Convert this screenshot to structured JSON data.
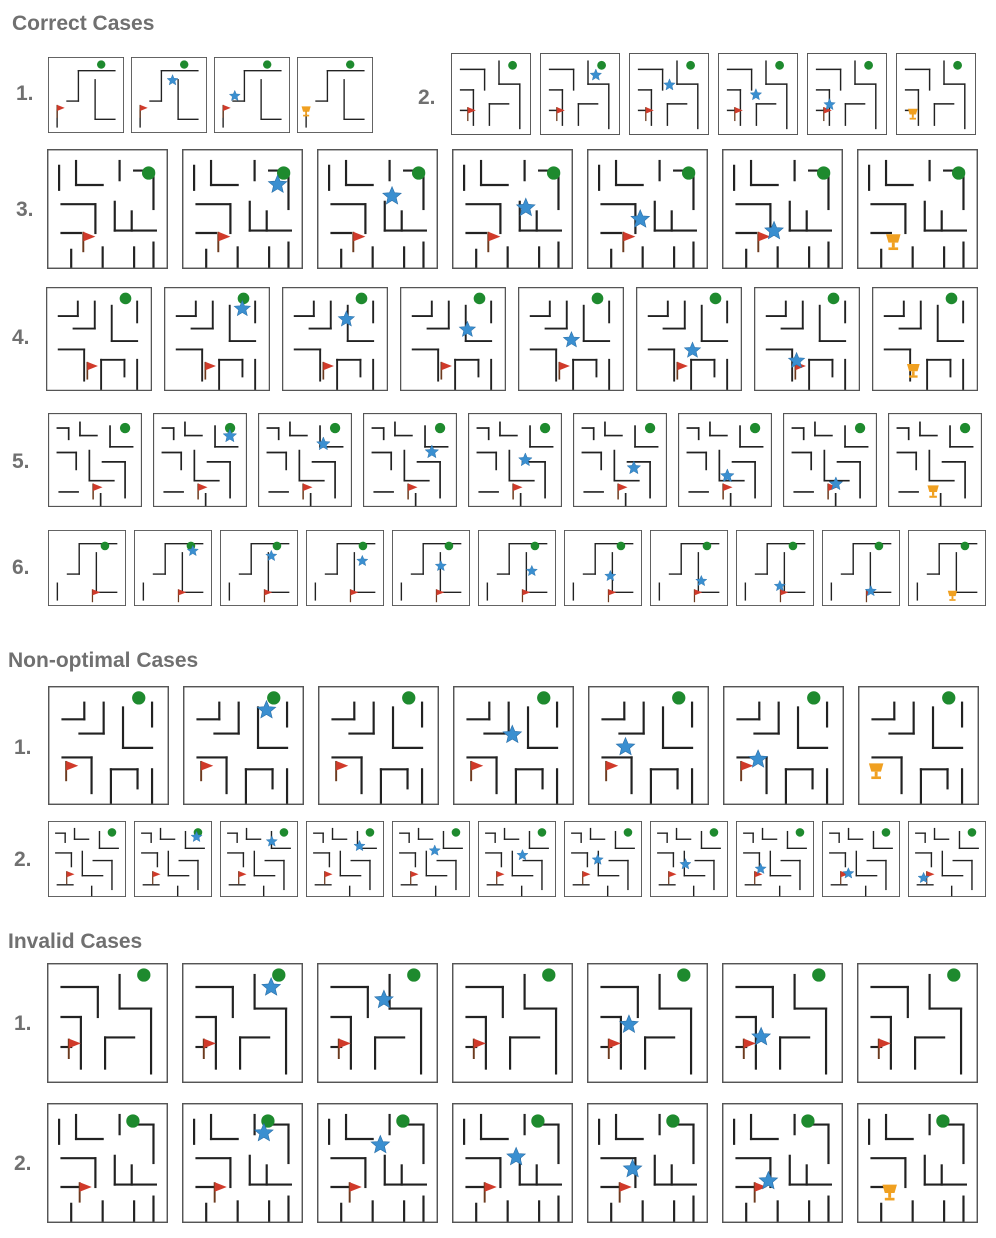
{
  "sections": [
    {
      "title": "Correct Cases",
      "rows": [
        {
          "label": "1.",
          "frames": [
            "g,f",
            "g,s,f",
            "g,s,f",
            "g,t"
          ]
        },
        {
          "label": "2.",
          "frames": [
            "g,f",
            "g,f,s",
            "g,f,s",
            "g,f,s",
            "g,f,s",
            "g,t"
          ]
        },
        {
          "label": "3.",
          "frames": [
            "g,f",
            "g,s,f",
            "g,s,f",
            "g,s,f",
            "g,s,f",
            "g,f,s",
            "g,t"
          ]
        },
        {
          "label": "4.",
          "frames": [
            "g,f",
            "g,s,f",
            "g,s,f",
            "g,s,f",
            "g,s,f",
            "g,s,f",
            "g,s,f",
            "g,t"
          ]
        },
        {
          "label": "5.",
          "frames": [
            "g,f",
            "g,s,f",
            "g,s,f",
            "g,s,f",
            "g,s,f",
            "g,s,f",
            "g,s,f",
            "g,s,f",
            "g,t"
          ]
        },
        {
          "label": "6.",
          "frames": [
            "g,f",
            "g,s,f",
            "g,s,f",
            "g,s,f",
            "g,s,f",
            "g,s,f",
            "g,s,f",
            "g,s,f",
            "g,s,f",
            "g,s,f",
            "g,t"
          ]
        }
      ]
    },
    {
      "title": "Non-optimal Cases",
      "rows": [
        {
          "label": "1.",
          "frames": [
            "g,f",
            "g,s,f",
            "g,f",
            "g,s,f",
            "g,s,f",
            "g,s,f",
            "g,t"
          ]
        },
        {
          "label": "2.",
          "frames": [
            "g,f",
            "g,s,f",
            "g,s,f",
            "g,s,f",
            "g,s,f",
            "g,s,f",
            "g,s,f",
            "g,s,f",
            "g,s,f",
            "g,s,f",
            "g,s,f"
          ]
        }
      ]
    },
    {
      "title": "Invalid Cases",
      "rows": [
        {
          "label": "1.",
          "frames": [
            "g,f",
            "g,s,f",
            "g,s,f",
            "g,f",
            "g,s,f",
            "g,s,f",
            "g,f"
          ]
        },
        {
          "label": "2.",
          "frames": [
            "g,f",
            "g,s,f",
            "g,s,f",
            "g,s,f",
            "g,s,f",
            "g,s,f",
            "g,t"
          ]
        }
      ]
    }
  ],
  "colors": {
    "goal_dot": "#1e8a2e",
    "agent_star": "#3a8fd0",
    "flag": "#d03a2a",
    "trophy": "#f0a020",
    "wall": "#222222",
    "heading": "#707070"
  },
  "icons": {
    "start": "green-dot-icon",
    "agent": "blue-star-icon",
    "goal": "red-flag-icon",
    "success": "trophy-icon"
  }
}
